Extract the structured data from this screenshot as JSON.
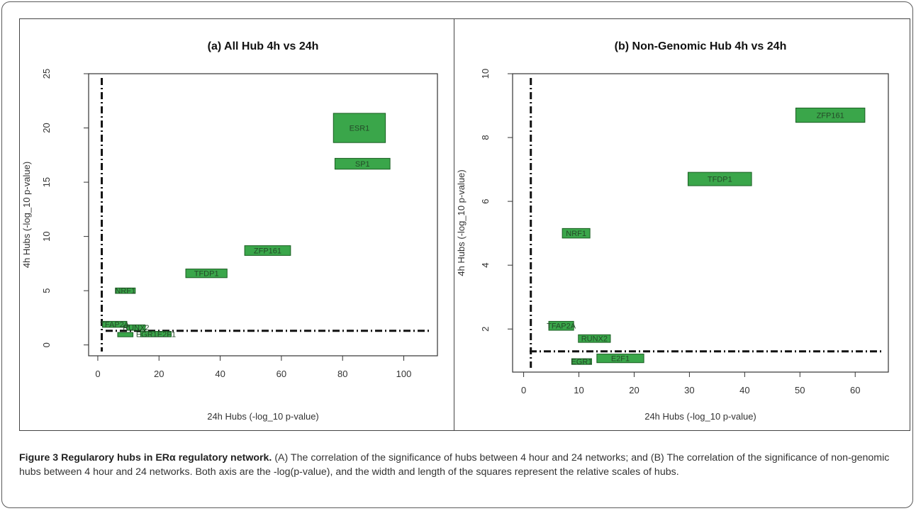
{
  "chart_data": [
    {
      "type": "scatter",
      "title": "(a) All Hub 4h vs 24h",
      "xlabel": "24h Hubs (-log_10 p-value)",
      "ylabel": "4h Hubs (-log_10 p-value)",
      "xlim": [
        -3,
        111
      ],
      "ylim": [
        -1,
        25
      ],
      "xticks": [
        "0",
        "20",
        "40",
        "60",
        "80",
        "100"
      ],
      "yticks": [
        "0",
        "5",
        "10",
        "15",
        "20",
        "25"
      ],
      "vline_x": 1.3,
      "hline_y": 1.3,
      "hubs": [
        {
          "label": "ESR1",
          "x": 85.5,
          "y": 20,
          "w": 17,
          "h": 2.7
        },
        {
          "label": "SP1",
          "x": 86.5,
          "y": 16.7,
          "w": 18,
          "h": 1.0
        },
        {
          "label": "ZFP161",
          "x": 55.5,
          "y": 8.7,
          "w": 15,
          "h": 0.9
        },
        {
          "label": "TFDP1",
          "x": 35.5,
          "y": 6.6,
          "w": 13.5,
          "h": 0.8
        },
        {
          "label": "NRF1",
          "x": 9,
          "y": 5,
          "w": 6.5,
          "h": 0.5
        },
        {
          "label": "TFAP2A",
          "x": 5.5,
          "y": 1.9,
          "w": 8,
          "h": 0.55
        },
        {
          "label": "RUNX2",
          "x": 12.5,
          "y": 1.6,
          "w": 6,
          "h": 0.5
        },
        {
          "label": "E2F1",
          "x": 19,
          "y": 1.0,
          "w": 10,
          "h": 0.5
        },
        {
          "label": "EGR1",
          "x": 9,
          "y": 0.95,
          "w": 5,
          "h": 0.4
        }
      ],
      "hub_labels_visible": [
        "ESR1",
        "SP1",
        "ZFP161",
        "TFDP1",
        "NRF1",
        "TFAP2A",
        "RUNX2",
        "EGR1E2F1",
        ""
      ]
    },
    {
      "type": "scatter",
      "title": "(b) Non-Genomic Hub 4h vs 24h",
      "xlabel": "24h Hubs (-log_10 p-value)",
      "ylabel": "4h Hubs (-log_10 p-value)",
      "xlim": [
        -2,
        66
      ],
      "ylim": [
        0.65,
        10
      ],
      "xticks": [
        "0",
        "10",
        "20",
        "30",
        "40",
        "50",
        "60"
      ],
      "yticks": [
        "2",
        "4",
        "6",
        "8",
        "10"
      ],
      "vline_x": 1.3,
      "hline_y": 1.3,
      "hubs": [
        {
          "label": "ZFP161",
          "x": 55.5,
          "y": 8.7,
          "w": 12.5,
          "h": 0.45
        },
        {
          "label": "TFDP1",
          "x": 35.5,
          "y": 6.7,
          "w": 11.5,
          "h": 0.42
        },
        {
          "label": "NRF1",
          "x": 9.5,
          "y": 5.0,
          "w": 5,
          "h": 0.3
        },
        {
          "label": "TFAP2A",
          "x": 6.8,
          "y": 2.1,
          "w": 4.5,
          "h": 0.28
        },
        {
          "label": "RUNX2",
          "x": 12.8,
          "y": 1.7,
          "w": 5.8,
          "h": 0.24
        },
        {
          "label": "E2F1",
          "x": 17.5,
          "y": 1.08,
          "w": 8.5,
          "h": 0.27
        },
        {
          "label": "EGR1",
          "x": 10.5,
          "y": 0.98,
          "w": 3.6,
          "h": 0.18
        }
      ],
      "hub_labels_visible": [
        "ZFP161",
        "TFDP1",
        "NRF1",
        "TFAP2A",
        "RUNX2",
        "E2F1",
        "EGR1"
      ]
    }
  ],
  "colors": {
    "box_fill": "#3aa64a",
    "box_stroke": "#1a5e22",
    "box_text": "#244a28",
    "axis": "#333333"
  },
  "caption": {
    "figure_label": "Figure 3 Regularory hubs in ERα regulatory network.",
    "text": " (A) The correlation of the significance of hubs between 4 hour and 24 networks; and (B) The correlation of the significance of non-genomic hubs between 4 hour and 24 networks. Both axis are the -log(p-value), and the width and length of the squares represent the relative scales of hubs."
  }
}
